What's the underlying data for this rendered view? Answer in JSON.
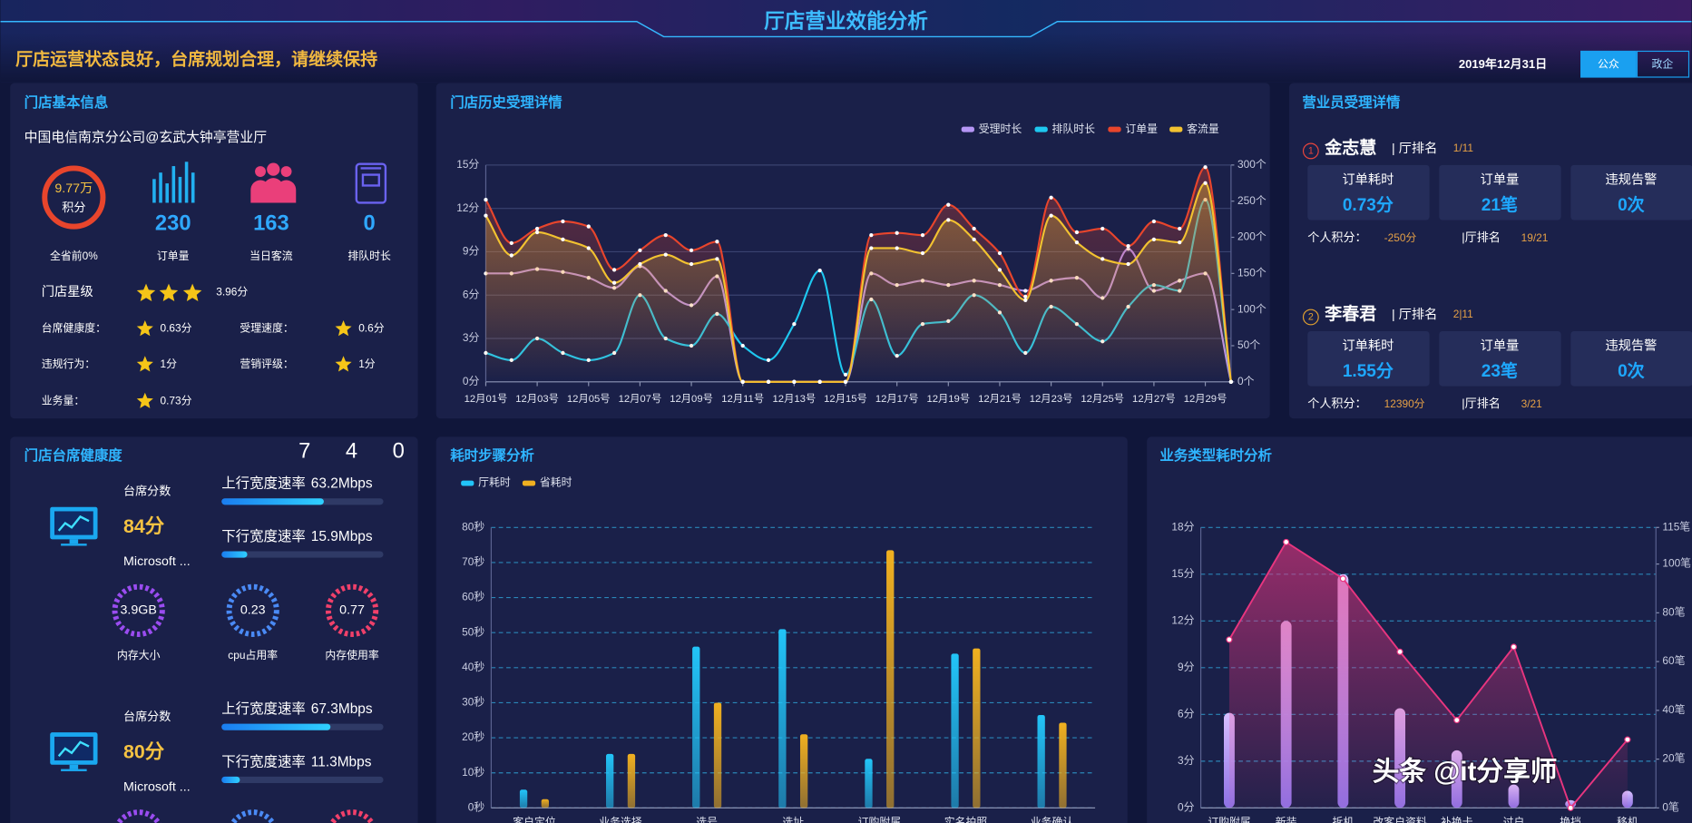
{
  "header": {
    "title": "厅店营业效能分析",
    "slogan": "厅店运营状态良好，台席规划合理，请继续保持",
    "date": "2019年12月31日",
    "tabs": [
      "公众",
      "政企"
    ]
  },
  "store_info": {
    "title": "门店基本信息",
    "store": "中国电信南京分公司@玄武大钟亭营业厅",
    "score": "9.77万",
    "score_label": "积分",
    "score_rank": "全省前0%",
    "stats": [
      {
        "value": 230,
        "label": "订单量"
      },
      {
        "value": 163,
        "label": "当日客流"
      },
      {
        "value": 0,
        "label": "排队时长"
      }
    ],
    "star_label": "门店星级",
    "star_score": "3.96分",
    "ratings": [
      {
        "label": "台席健康度：",
        "value": "0.63分"
      },
      {
        "label": "受理速度：",
        "value": "0.6分"
      },
      {
        "label": "违规行为：",
        "value": "1分"
      },
      {
        "label": "营销评级：",
        "value": "1分"
      },
      {
        "label": "业务量：",
        "value": "0.73分"
      }
    ]
  },
  "staff": {
    "title": "营业员受理详情",
    "members": [
      {
        "rank": "1",
        "name": "金志慧",
        "rank_label": "| 厅排名",
        "hall_rank": "1/11",
        "cells": [
          {
            "label": "订单耗时",
            "value": "0.73分"
          },
          {
            "label": "订单量",
            "value": "21笔"
          },
          {
            "label": "违规告警",
            "value": "0次"
          }
        ],
        "points_label": "个人积分：",
        "points": "-250分",
        "rank2_label": "|厅排名",
        "rank2": "19/21"
      },
      {
        "rank": "2",
        "name": "李春君",
        "rank_label": "| 厅排名",
        "hall_rank": "2|11",
        "cells": [
          {
            "label": "订单耗时",
            "value": "1.55分"
          },
          {
            "label": "订单量",
            "value": "23笔"
          },
          {
            "label": "违规告警",
            "value": "0次"
          }
        ],
        "points_label": "个人积分：",
        "points": "12390分",
        "rank2_label": "|厅排名",
        "rank2": "3/21"
      }
    ]
  },
  "desks": {
    "title": "门店台席健康度",
    "counter": [
      "7",
      "4",
      "0"
    ],
    "xlim": [
      0,
      100
    ],
    "items": [
      {
        "score_label": "台席分数",
        "score": "84分",
        "os": "Microsoft ...",
        "up_label": "上行宽度速率",
        "up": {
          "value": 63.2,
          "label": "63.2Mbps"
        },
        "down_label": "下行宽度速率",
        "down": {
          "value": 15.9,
          "label": "15.9Mbps"
        },
        "gauges": [
          {
            "value": "3.9GB",
            "label": "内存大小"
          },
          {
            "value": "0.23",
            "label": "cpu占用率"
          },
          {
            "value": "0.77",
            "label": "内存使用率"
          }
        ]
      },
      {
        "score_label": "台席分数",
        "score": "80分",
        "os": "Microsoft ...",
        "up_label": "上行宽度速率",
        "up": {
          "value": 67.3,
          "label": "67.3Mbps"
        },
        "down_label": "下行宽度速率",
        "down": {
          "value": 11.3,
          "label": "11.3Mbps"
        }
      }
    ]
  },
  "chart_data": [
    {
      "type": "line",
      "title": "门店历史受理详情",
      "categories": [
        "12月01号",
        null,
        "12月03号",
        null,
        "12月05号",
        null,
        "12月07号",
        null,
        "12月09号",
        null,
        "12月11号",
        null,
        "12月13号",
        null,
        "12月15号",
        null,
        "12月17号",
        null,
        "12月19号",
        null,
        "12月21号",
        null,
        "12月23号",
        null,
        "12月25号",
        null,
        "12月27号",
        null,
        "12月29号",
        null
      ],
      "series": [
        {
          "name": "受理时长",
          "color": "#b596f5",
          "values": [
            7.5,
            7.5,
            7.8,
            7.6,
            7.2,
            6.5,
            8.0,
            6.3,
            5.3,
            7.3,
            0,
            0,
            0,
            0,
            0,
            7.5,
            6.7,
            7.0,
            6.7,
            7.0,
            6.7,
            6.3,
            7.0,
            7.2,
            5.8,
            9.2,
            6.3,
            7.0,
            7.5,
            0
          ]
        },
        {
          "name": "排队时长",
          "color": "#1ec8f0",
          "values": [
            2.0,
            1.5,
            3.0,
            2.0,
            1.5,
            2.0,
            6.0,
            3.0,
            2.5,
            4.7,
            2.5,
            1.5,
            4.0,
            7.7,
            0.5,
            5.7,
            1.8,
            4.0,
            4.2,
            6.0,
            4.8,
            2.0,
            5.2,
            4.0,
            2.8,
            5.2,
            6.7,
            6.3,
            12.6,
            0
          ]
        },
        {
          "name": "订单量",
          "color": "#e8452c",
          "axis": "y2",
          "values": [
            252,
            192,
            212,
            222,
            215,
            155,
            182,
            203,
            182,
            194,
            0,
            0,
            0,
            0,
            0,
            203,
            206,
            203,
            245,
            212,
            178,
            118,
            255,
            207,
            212,
            188,
            222,
            212,
            297,
            0
          ]
        },
        {
          "name": "客流量",
          "color": "#f2c230",
          "axis": "y2",
          "values": [
            230,
            175,
            207,
            197,
            185,
            137,
            163,
            176,
            163,
            170,
            0,
            0,
            0,
            0,
            0,
            185,
            185,
            178,
            224,
            197,
            155,
            113,
            230,
            193,
            170,
            163,
            197,
            193,
            275,
            0
          ]
        }
      ],
      "ylim": [
        0,
        15
      ],
      "yticks": [
        {
          "value": 0,
          "label": "0分"
        },
        {
          "value": 3,
          "label": "3分"
        },
        {
          "value": 6,
          "label": "6分"
        },
        {
          "value": 9,
          "label": "9分"
        },
        {
          "value": 12,
          "label": "12分"
        },
        {
          "value": 15,
          "label": "15分"
        }
      ],
      "y2lim": [
        0,
        300
      ],
      "y2ticks": [
        {
          "value": 0,
          "label": "0个"
        },
        {
          "value": 50,
          "label": "50个"
        },
        {
          "value": 100,
          "label": "100个"
        },
        {
          "value": 150,
          "label": "150个"
        },
        {
          "value": 200,
          "label": "200个"
        },
        {
          "value": 250,
          "label": "250个"
        },
        {
          "value": 300,
          "label": "300个"
        }
      ],
      "grid": true,
      "legend": "top-right"
    },
    {
      "type": "bar",
      "title": "耗时步骤分析",
      "categories": [
        "客户定位",
        "业务选择",
        "选号",
        "选址",
        "订购附属",
        "实名拍照",
        "业务确认"
      ],
      "series": [
        {
          "name": "厅耗时",
          "color": "#22c4f8",
          "values": [
            5.2,
            15.4,
            46,
            51,
            14,
            44,
            26.5
          ]
        },
        {
          "name": "省耗时",
          "color": "#f0b020",
          "values": [
            2.5,
            15.4,
            30,
            21,
            73.5,
            45.5,
            24.3
          ]
        }
      ],
      "ylim": [
        0,
        80
      ],
      "yticks": [
        {
          "value": 0,
          "label": "0秒"
        },
        {
          "value": 10,
          "label": "10秒"
        },
        {
          "value": 20,
          "label": "20秒"
        },
        {
          "value": 30,
          "label": "30秒"
        },
        {
          "value": 40,
          "label": "40秒"
        },
        {
          "value": 50,
          "label": "50秒"
        },
        {
          "value": 60,
          "label": "60秒"
        },
        {
          "value": 70,
          "label": "70秒"
        },
        {
          "value": 80,
          "label": "80秒"
        }
      ],
      "grid": true,
      "legend": "top-left"
    },
    {
      "type": "combo",
      "title": "业务类型耗时分析",
      "categories": [
        "订购附属",
        "新装",
        "拆机",
        "改客户资料",
        "补换卡",
        "过户",
        "换挡",
        "移机"
      ],
      "series": [
        {
          "type": "bar",
          "color": "#9a7af5",
          "values": [
            6.1,
            12,
            15,
            6.4,
            3.7,
            1.5,
            0.5,
            1.1
          ]
        },
        {
          "type": "line",
          "color": "#e8357f",
          "axis": "y2",
          "values": [
            69,
            109,
            94,
            64,
            36,
            66,
            0,
            28
          ]
        }
      ],
      "ylim": [
        0,
        18
      ],
      "yticks": [
        {
          "value": 0,
          "label": "0分"
        },
        {
          "value": 3,
          "label": "3分"
        },
        {
          "value": 6,
          "label": "6分"
        },
        {
          "value": 9,
          "label": "9分"
        },
        {
          "value": 12,
          "label": "12分"
        },
        {
          "value": 15,
          "label": "15分"
        },
        {
          "value": 18,
          "label": "18分"
        }
      ],
      "y2lim": [
        0,
        115
      ],
      "y2ticks": [
        {
          "value": 0,
          "label": "0笔"
        },
        {
          "value": 20,
          "label": "20笔"
        },
        {
          "value": 40,
          "label": "40笔"
        },
        {
          "value": 60,
          "label": "60笔"
        },
        {
          "value": 80,
          "label": "80笔"
        },
        {
          "value": 100,
          "label": "100笔"
        },
        {
          "value": 115,
          "label": "115笔"
        }
      ],
      "grid": true
    }
  ],
  "watermark": "头条 @it分享师"
}
